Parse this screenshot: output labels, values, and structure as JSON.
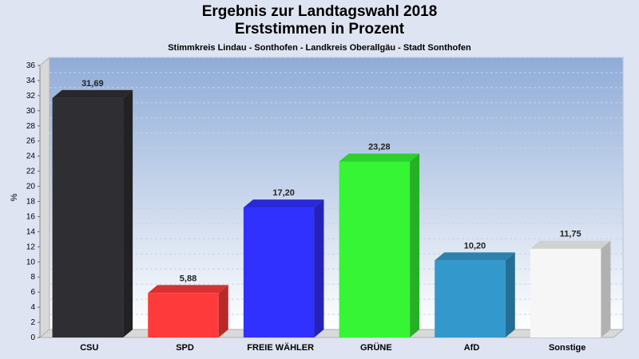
{
  "chart_data": {
    "type": "bar",
    "title": "Ergebnis zur Landtagswahl 2018",
    "title_line2": "Erststimmen in Prozent",
    "subtitle": "Stimmkreis Lindau - Sonthofen - Landkreis Oberallgäu - Stadt Sonthofen",
    "ylabel": "%",
    "xlabel": "",
    "ylim": [
      0,
      36
    ],
    "ytick_step": 2,
    "grid": true,
    "categories": [
      "CSU",
      "SPD",
      "FREIE WÄHLER",
      "GRÜNE",
      "AfD",
      "Sonstige"
    ],
    "values": [
      31.69,
      5.88,
      17.2,
      23.28,
      10.2,
      11.75
    ],
    "value_labels": [
      "31,69",
      "5,88",
      "17,20",
      "23,28",
      "10,20",
      "11,75"
    ],
    "colors": [
      "#2f2f33",
      "#ff3a3a",
      "#3030ff",
      "#35f535",
      "#3399cc",
      "#f6f6f6"
    ]
  }
}
